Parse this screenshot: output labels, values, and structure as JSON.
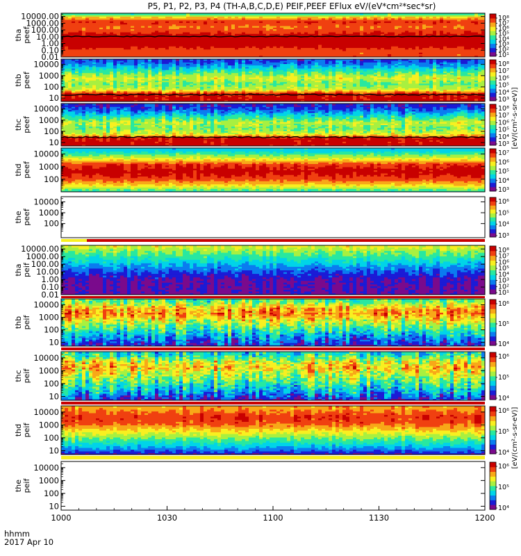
{
  "title": "P5, P1, P2, P3, P4 (TH-A,B,C,D,E) PEIF,PEEF EFlux eV/(eV*cm²*sec*sr)",
  "x_axis": {
    "prefix_label": "hhmm",
    "date_label": "2017 Apr 10",
    "tick_labels": [
      "1000",
      "1030",
      "1100",
      "1130",
      "1200"
    ]
  },
  "colorbar_labels": {
    "electron": "[eV/(cm²-s-sr-eV)]",
    "ion": "[eV/(cm²-s-sr-eV)]"
  },
  "palette": [
    "#7a0a8c",
    "#1b1bd6",
    "#0a7cf0",
    "#00d4e8",
    "#28e8a0",
    "#a8f040",
    "#f8f020",
    "#f8a818",
    "#f04010",
    "#c80000"
  ],
  "chart_data": [
    {
      "type": "heatmap",
      "panel": "tha-peef",
      "probe": "tha",
      "product": "peef",
      "ylabel": [
        "tha",
        "peef"
      ],
      "yscale": "log",
      "ylim": [
        0.01,
        30000
      ],
      "ytick_labels": [
        "10000.00",
        "1000.00",
        "100.00",
        "10.00",
        "1.00",
        "0.10",
        "0.01"
      ],
      "ytick_values": [
        10000,
        1000,
        100,
        10,
        1,
        0.1,
        0.01
      ],
      "colorbar": {
        "scale": "log",
        "tick_labels": [
          "10⁸",
          "10⁷",
          "10⁶",
          "10⁵",
          "10⁴",
          "10³",
          "10²",
          "10¹"
        ],
        "tick_values": [
          100000000.0,
          10000000.0,
          1000000.0,
          100000.0,
          10000.0,
          1000.0,
          100.0,
          10.0
        ]
      },
      "profile": [
        [
          0.01,
          0.85
        ],
        [
          0.1,
          0.85
        ],
        [
          1,
          0.985
        ],
        [
          10,
          0.985
        ],
        [
          50,
          0.88
        ],
        [
          300,
          0.8
        ],
        [
          2000,
          0.9
        ],
        [
          8000,
          0.7
        ],
        [
          20000,
          0.45
        ]
      ],
      "black_line": 11,
      "noise": 0.05
    },
    {
      "type": "heatmap",
      "panel": "thb-peef",
      "probe": "thb",
      "product": "peef",
      "ylabel": [
        "thb",
        "peef"
      ],
      "yscale": "log",
      "ylim": [
        5,
        30000
      ],
      "ytick_labels": [
        "10000",
        "1000",
        "100",
        "10"
      ],
      "ytick_values": [
        10000,
        1000,
        100,
        10
      ],
      "colorbar": {
        "scale": "log",
        "tick_labels": [
          "10⁸",
          "10⁷",
          "10⁶",
          "10⁵",
          "10⁴",
          "10³"
        ],
        "tick_values": [
          100000000.0,
          10000000.0,
          1000000.0,
          100000.0,
          10000.0,
          1000.0
        ]
      },
      "profile": [
        [
          5,
          0.985
        ],
        [
          25,
          0.93
        ],
        [
          60,
          0.6
        ],
        [
          200,
          0.5
        ],
        [
          600,
          0.62
        ],
        [
          2000,
          0.48
        ],
        [
          8000,
          0.3
        ],
        [
          20000,
          0.2
        ]
      ],
      "black_line": 20,
      "noise": 0.1
    },
    {
      "type": "heatmap",
      "panel": "thc-peef",
      "probe": "thc",
      "product": "peef",
      "ylabel": [
        "thc",
        "peef"
      ],
      "yscale": "log",
      "ylim": [
        5,
        30000
      ],
      "ytick_labels": [
        "10000",
        "1000",
        "100",
        "10"
      ],
      "ytick_values": [
        10000,
        1000,
        100,
        10
      ],
      "colorbar": {
        "scale": "log",
        "tick_labels": [
          "10⁸",
          "10⁷",
          "10⁶",
          "10⁵",
          "10⁴",
          "10³"
        ],
        "tick_values": [
          100000000.0,
          10000000.0,
          1000000.0,
          100000.0,
          10000.0,
          1000.0
        ]
      },
      "profile": [
        [
          5,
          0.985
        ],
        [
          25,
          0.95
        ],
        [
          60,
          0.62
        ],
        [
          200,
          0.5
        ],
        [
          600,
          0.58
        ],
        [
          2000,
          0.42
        ],
        [
          8000,
          0.22
        ],
        [
          20000,
          0.14
        ]
      ],
      "black_line": 30,
      "noise": 0.12
    },
    {
      "type": "heatmap",
      "panel": "thd-peef",
      "probe": "thd",
      "product": "peef",
      "ylabel": [
        "thd",
        "peef"
      ],
      "yscale": "log",
      "ylim": [
        10,
        30000
      ],
      "ytick_labels": [
        "10000",
        "1000",
        "100"
      ],
      "ytick_values": [
        10000,
        1000,
        100
      ],
      "colorbar": {
        "scale": "log",
        "tick_labels": [
          "10⁷",
          "10⁶",
          "10⁵",
          "10⁴",
          "10³"
        ],
        "tick_values": [
          10000000.0,
          1000000.0,
          100000.0,
          10000.0,
          1000.0
        ]
      },
      "profile": [
        [
          10,
          0.4
        ],
        [
          30,
          0.65
        ],
        [
          100,
          0.85
        ],
        [
          400,
          0.95
        ],
        [
          1500,
          0.88
        ],
        [
          5000,
          0.6
        ],
        [
          20000,
          0.35
        ]
      ],
      "noise": 0.05
    },
    {
      "type": "heatmap",
      "panel": "the-peef",
      "probe": "the",
      "product": "peef",
      "ylabel": [
        "the",
        "peef"
      ],
      "yscale": "log",
      "ylim": [
        5,
        30000
      ],
      "ytick_labels": [
        "10000",
        "1000",
        "100"
      ],
      "ytick_values": [
        10000,
        1000,
        100
      ],
      "colorbar": {
        "scale": "log",
        "tick_labels": [
          "10⁶",
          "10⁵",
          "10⁴",
          "10³"
        ],
        "tick_values": [
          1000000.0,
          100000.0,
          10000.0,
          1000.0
        ]
      },
      "empty": true
    },
    {
      "type": "heatmap",
      "panel": "tha-peif",
      "probe": "tha",
      "product": "peif",
      "ylabel": [
        "tha",
        "peif"
      ],
      "yscale": "log",
      "ylim": [
        0.01,
        30000
      ],
      "ytick_labels": [
        "10000.00",
        "1000.00",
        "100.00",
        "10.00",
        "1.00",
        "0.10",
        "0.01"
      ],
      "ytick_values": [
        10000,
        1000,
        100,
        10,
        1,
        0.1,
        0.01
      ],
      "colorbar": {
        "scale": "log",
        "tick_labels": [
          "10⁸",
          "10⁷",
          "10⁶",
          "10⁵",
          "10⁴",
          "10³",
          "10²",
          "10¹"
        ],
        "tick_values": [
          100000000.0,
          10000000.0,
          1000000.0,
          100000.0,
          10000.0,
          1000.0,
          100.0,
          10.0
        ]
      },
      "profile": [
        [
          0.01,
          0.08
        ],
        [
          1,
          0.1
        ],
        [
          10,
          0.2
        ],
        [
          100,
          0.32
        ],
        [
          1000,
          0.45
        ],
        [
          8000,
          0.55
        ],
        [
          20000,
          0.62
        ]
      ],
      "noise": 0.08
    },
    {
      "type": "heatmap",
      "panel": "thb-peif",
      "probe": "thb",
      "product": "peif",
      "ylabel": [
        "thb",
        "peif"
      ],
      "yscale": "log",
      "ylim": [
        5,
        30000
      ],
      "ytick_labels": [
        "10000",
        "1000",
        "100",
        "10"
      ],
      "ytick_values": [
        10000,
        1000,
        100,
        10
      ],
      "colorbar": {
        "scale": "log",
        "tick_labels": [
          "10⁶",
          "10⁵",
          "10⁴"
        ],
        "tick_values": [
          1000000.0,
          100000.0,
          10000.0
        ]
      },
      "profile": [
        [
          5,
          0.12
        ],
        [
          20,
          0.25
        ],
        [
          100,
          0.42
        ],
        [
          600,
          0.62
        ],
        [
          2000,
          0.78
        ],
        [
          6000,
          0.7
        ],
        [
          20000,
          0.48
        ]
      ],
      "noise": 0.18
    },
    {
      "type": "heatmap",
      "panel": "thc-peif",
      "probe": "thc",
      "product": "peif",
      "ylabel": [
        "thc",
        "peif"
      ],
      "yscale": "log",
      "ylim": [
        5,
        30000
      ],
      "ytick_labels": [
        "10000",
        "1000",
        "100",
        "10"
      ],
      "ytick_values": [
        10000,
        1000,
        100,
        10
      ],
      "colorbar": {
        "scale": "log",
        "tick_labels": [
          "10⁶",
          "10⁵",
          "10⁴"
        ],
        "tick_values": [
          1000000.0,
          100000.0,
          10000.0
        ]
      },
      "profile": [
        [
          5,
          0.12
        ],
        [
          20,
          0.3
        ],
        [
          100,
          0.45
        ],
        [
          600,
          0.6
        ],
        [
          2000,
          0.72
        ],
        [
          6000,
          0.6
        ],
        [
          20000,
          0.4
        ]
      ],
      "noise": 0.2
    },
    {
      "type": "heatmap",
      "panel": "thd-peif",
      "probe": "thd",
      "product": "peif",
      "ylabel": [
        "thd",
        "peif"
      ],
      "yscale": "log",
      "ylim": [
        5,
        30000
      ],
      "ytick_labels": [
        "10000",
        "1000",
        "100",
        "10"
      ],
      "ytick_values": [
        10000,
        1000,
        100,
        10
      ],
      "colorbar": {
        "scale": "log",
        "tick_labels": [
          "10⁶",
          "10⁵",
          "10⁴"
        ],
        "tick_values": [
          1000000.0,
          100000.0,
          10000.0
        ]
      },
      "profile": [
        [
          5,
          0.1
        ],
        [
          15,
          0.28
        ],
        [
          60,
          0.45
        ],
        [
          300,
          0.65
        ],
        [
          1500,
          0.85
        ],
        [
          5000,
          0.88
        ],
        [
          20000,
          0.75
        ]
      ],
      "noise": 0.07
    },
    {
      "type": "heatmap",
      "panel": "the-peif",
      "probe": "the",
      "product": "peif",
      "ylabel": [
        "the",
        "peif"
      ],
      "yscale": "log",
      "ylim": [
        5,
        30000
      ],
      "ytick_labels": [
        "10000",
        "1000",
        "100",
        "10"
      ],
      "ytick_values": [
        10000,
        1000,
        100,
        10
      ],
      "colorbar": {
        "scale": "log",
        "tick_labels": [
          "10⁶",
          "10⁵",
          "10⁴"
        ],
        "tick_values": [
          1000000.0,
          100000.0,
          10000.0
        ]
      },
      "empty": true
    }
  ]
}
